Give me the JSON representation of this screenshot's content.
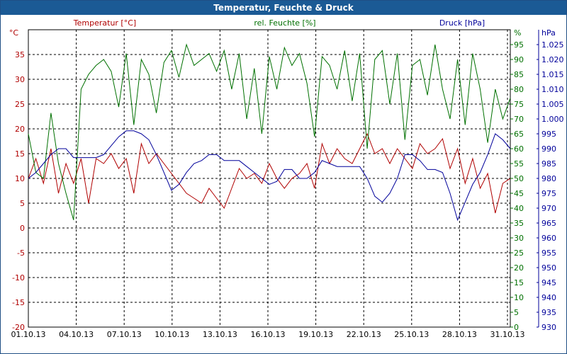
{
  "window": {
    "title": "Temperatur, Feuchte & Druck"
  },
  "colors": {
    "temperature": "#b00000",
    "humidity": "#007000",
    "pressure": "#00009a",
    "grid": "#000000",
    "title_bar": "#1b5a95",
    "axis_text": "#000000"
  },
  "chart_data": {
    "type": "line",
    "title": "Temperatur, Feuchte & Druck",
    "xlabel": "",
    "x_ticks": [
      "01.10.13",
      "04.10.13",
      "07.10.13",
      "10.10.13",
      "13.10.13",
      "16.10.13",
      "19.10.13",
      "22.10.13",
      "25.10.13",
      "28.10.13",
      "31.10.13"
    ],
    "x_range": [
      0,
      32
    ],
    "axes": {
      "temperature": {
        "label": "Temperatur [°C]",
        "unit": "°C",
        "ylim": [
          -20,
          40
        ],
        "ticks": [
          "-20",
          "-15",
          "-10",
          "-5",
          "0",
          "5",
          "10",
          "15",
          "20",
          "25",
          "30",
          "35"
        ]
      },
      "humidity": {
        "label": "rel. Feuchte [%]",
        "unit": "%",
        "ylim": [
          0,
          100
        ],
        "ticks": [
          "0",
          "5",
          "10",
          "15",
          "20",
          "25",
          "30",
          "35",
          "40",
          "45",
          "50",
          "55",
          "60",
          "65",
          "70",
          "75",
          "80",
          "85",
          "90",
          "95"
        ]
      },
      "pressure": {
        "label": "Druck [hPa]",
        "unit": "hPa",
        "ylim": [
          930,
          1030
        ],
        "ticks": [
          "930",
          "935",
          "940",
          "945",
          "950",
          "955",
          "960",
          "965",
          "970",
          "975",
          "980",
          "985",
          "990",
          "995",
          "1.000",
          "1.005",
          "1.010",
          "1.015",
          "1.020",
          "1.025"
        ]
      }
    },
    "series": [
      {
        "name": "Temperatur [°C]",
        "axis": "temperature",
        "x": [
          0,
          0.5,
          1,
          1.5,
          2,
          2.5,
          3,
          3.5,
          4,
          4.5,
          5,
          5.5,
          6,
          6.5,
          7,
          7.5,
          8,
          8.5,
          9,
          9.5,
          10,
          10.5,
          11,
          11.5,
          12,
          12.5,
          13,
          13.5,
          14,
          14.5,
          15,
          15.5,
          16,
          16.5,
          17,
          17.5,
          18,
          18.5,
          19,
          19.5,
          20,
          20.5,
          21,
          21.5,
          22,
          22.5,
          23,
          23.5,
          24,
          24.5,
          25,
          25.5,
          26,
          26.5,
          27,
          27.5,
          28,
          28.5,
          29,
          29.5,
          30,
          30.5,
          31,
          31.5,
          32
        ],
        "values": [
          10,
          14,
          9,
          16,
          7,
          13,
          9,
          14,
          5,
          14,
          13,
          15,
          12,
          14,
          7,
          17,
          13,
          15,
          13,
          11,
          9,
          7,
          6,
          5,
          8,
          6,
          4,
          8,
          12,
          10,
          11,
          9,
          13,
          10,
          8,
          10,
          11,
          13,
          8,
          17,
          13,
          16,
          14,
          13,
          16,
          19,
          15,
          16,
          13,
          16,
          14,
          12,
          17,
          15,
          16,
          18,
          12,
          16,
          9,
          14,
          8,
          11,
          3,
          9,
          10
        ]
      },
      {
        "name": "rel. Feuchte [%]",
        "axis": "humidity",
        "x": [
          0,
          0.5,
          1,
          1.5,
          2,
          2.5,
          3,
          3.5,
          4,
          4.5,
          5,
          5.5,
          6,
          6.5,
          7,
          7.5,
          8,
          8.5,
          9,
          9.5,
          10,
          10.5,
          11,
          11.5,
          12,
          12.5,
          13,
          13.5,
          14,
          14.5,
          15,
          15.5,
          16,
          16.5,
          17,
          17.5,
          18,
          18.5,
          19,
          19.5,
          20,
          20.5,
          21,
          21.5,
          22,
          22.5,
          23,
          23.5,
          24,
          24.5,
          25,
          25.5,
          26,
          26.5,
          27,
          27.5,
          28,
          28.5,
          29,
          29.5,
          30,
          30.5,
          31,
          31.5,
          32
        ],
        "values": [
          65,
          52,
          50,
          72,
          55,
          45,
          36,
          80,
          85,
          88,
          90,
          86,
          74,
          92,
          68,
          90,
          85,
          72,
          89,
          93,
          84,
          95,
          88,
          90,
          92,
          86,
          93,
          80,
          92,
          70,
          87,
          65,
          91,
          80,
          94,
          88,
          92,
          82,
          64,
          91,
          88,
          80,
          93,
          76,
          92,
          60,
          90,
          93,
          75,
          92,
          63,
          88,
          90,
          78,
          95,
          80,
          70,
          90,
          68,
          92,
          80,
          62,
          80,
          70,
          77
        ]
      },
      {
        "name": "Druck [hPa]",
        "axis": "pressure",
        "x": [
          0,
          0.5,
          1,
          1.5,
          2,
          2.5,
          3,
          3.5,
          4,
          4.5,
          5,
          5.5,
          6,
          6.5,
          7,
          7.5,
          8,
          8.5,
          9,
          9.5,
          10,
          10.5,
          11,
          11.5,
          12,
          12.5,
          13,
          13.5,
          14,
          14.5,
          15,
          15.5,
          16,
          16.5,
          17,
          17.5,
          18,
          18.5,
          19,
          19.5,
          20,
          20.5,
          21,
          21.5,
          22,
          22.5,
          23,
          23.5,
          24,
          24.5,
          25,
          25.5,
          26,
          26.5,
          27,
          27.5,
          28,
          28.5,
          29,
          29.5,
          30,
          30.5,
          31,
          31.5,
          32
        ],
        "values": [
          980,
          982,
          985,
          988,
          990,
          990,
          987,
          987,
          987,
          987,
          988,
          991,
          994,
          996,
          996,
          995,
          993,
          988,
          982,
          976,
          978,
          982,
          985,
          986,
          988,
          988,
          986,
          986,
          986,
          984,
          982,
          980,
          978,
          979,
          983,
          983,
          980,
          980,
          982,
          986,
          985,
          984,
          984,
          984,
          984,
          980,
          974,
          972,
          975,
          980,
          988,
          988,
          986,
          983,
          983,
          982,
          975,
          966,
          972,
          978,
          982,
          988,
          995,
          993,
          990
        ]
      }
    ]
  }
}
